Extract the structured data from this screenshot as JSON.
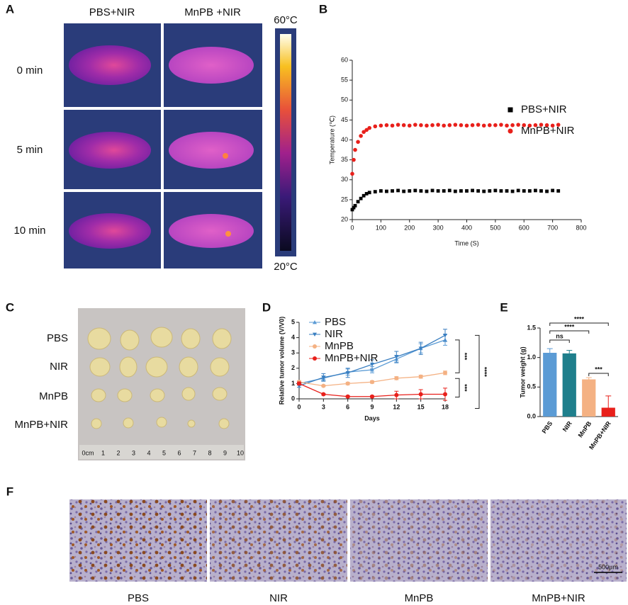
{
  "figure": {
    "panels": [
      "A",
      "B",
      "C",
      "D",
      "E",
      "F"
    ],
    "thermal": {
      "columns": [
        "PBS+NIR",
        "MnPB +NIR"
      ],
      "rows": [
        "0 min",
        "5 min",
        "10 min"
      ],
      "scale_max": "60°C",
      "scale_min": "20°C"
    },
    "photo": {
      "rows": [
        "PBS",
        "NIR",
        "MnPB",
        "MnPB+NIR"
      ],
      "ruler": [
        "0cm",
        "1",
        "2",
        "3",
        "4",
        "5",
        "6",
        "7",
        "8",
        "9",
        "10"
      ]
    },
    "histology": {
      "labels": [
        "PBS",
        "NIR",
        "MnPB",
        "MnPB+NIR"
      ],
      "scale_bar": "500μm"
    }
  },
  "chart_data": [
    {
      "type": "scatter",
      "xlabel": "Time (S)",
      "ylabel": "Temperature (℃)",
      "x": [
        0,
        5,
        10,
        20,
        30,
        40,
        50,
        60,
        80,
        100,
        120,
        140,
        160,
        180,
        200,
        220,
        240,
        260,
        280,
        300,
        320,
        340,
        360,
        380,
        400,
        420,
        440,
        460,
        480,
        500,
        520,
        540,
        560,
        580,
        600,
        620,
        640,
        660,
        680,
        700,
        720
      ],
      "series": [
        {
          "name": "PBS+NIR",
          "color": "#000000",
          "marker": "square",
          "values": [
            22.5,
            23,
            23.5,
            24.5,
            25.3,
            26,
            26.5,
            26.8,
            27,
            27.2,
            27.1,
            27.2,
            27.3,
            27.1,
            27.2,
            27.3,
            27.2,
            27.1,
            27.3,
            27.2,
            27.2,
            27.3,
            27.1,
            27.2,
            27.2,
            27.3,
            27.2,
            27.1,
            27.2,
            27.3,
            27.2,
            27.2,
            27.1,
            27.3,
            27.2,
            27.2,
            27.3,
            27.2,
            27.1,
            27.3,
            27.2
          ]
        },
        {
          "name": "MnPB+NIR",
          "color": "#e8201b",
          "marker": "circle",
          "values": [
            31.5,
            35,
            37.5,
            39.5,
            41,
            42,
            42.5,
            43,
            43.4,
            43.6,
            43.7,
            43.6,
            43.8,
            43.7,
            43.6,
            43.8,
            43.7,
            43.6,
            43.7,
            43.8,
            43.6,
            43.7,
            43.8,
            43.7,
            43.6,
            43.7,
            43.8,
            43.6,
            43.7,
            43.7,
            43.8,
            43.6,
            43.7,
            43.8,
            43.7,
            43.6,
            43.7,
            43.8,
            43.7,
            43.6,
            43.8
          ]
        }
      ],
      "xlim": [
        0,
        800
      ],
      "xticks": [
        0,
        100,
        200,
        300,
        400,
        500,
        600,
        700,
        800
      ],
      "ylim": [
        20,
        60
      ],
      "yticks": [
        20,
        25,
        30,
        35,
        40,
        45,
        50,
        55,
        60
      ],
      "legend": "upper right"
    },
    {
      "type": "line",
      "xlabel": "Days",
      "ylabel": "Relative tumor volume (V/V0)",
      "x": [
        0,
        3,
        6,
        9,
        12,
        15,
        18
      ],
      "series": [
        {
          "name": "PBS",
          "color": "#5b9bd5",
          "marker": "triangle-up",
          "values": [
            1.0,
            1.35,
            1.75,
            1.9,
            2.6,
            3.3,
            3.85
          ],
          "errors": [
            0.1,
            0.15,
            0.2,
            0.2,
            0.25,
            0.3,
            0.35
          ]
        },
        {
          "name": "NIR",
          "color": "#3a7fc1",
          "marker": "triangle-down",
          "values": [
            0.85,
            1.4,
            1.7,
            2.25,
            2.75,
            3.3,
            4.15
          ],
          "errors": [
            0.1,
            0.25,
            0.3,
            0.3,
            0.35,
            0.4,
            0.4
          ]
        },
        {
          "name": "MnPB",
          "color": "#f4b183",
          "marker": "circle",
          "values": [
            1.1,
            0.85,
            1.0,
            1.1,
            1.35,
            1.45,
            1.7
          ],
          "errors": [
            0.1,
            0.05,
            0.08,
            0.08,
            0.1,
            0.1,
            0.12
          ]
        },
        {
          "name": "MnPB+NIR",
          "color": "#e8201b",
          "marker": "circle",
          "values": [
            1.0,
            0.3,
            0.15,
            0.15,
            0.25,
            0.3,
            0.3
          ],
          "errors": [
            0.1,
            0.05,
            0.05,
            0.05,
            0.25,
            0.3,
            0.4
          ]
        }
      ],
      "xlim": [
        0,
        18
      ],
      "xticks": [
        0,
        3,
        6,
        9,
        12,
        15,
        18
      ],
      "ylim": [
        0,
        5
      ],
      "yticks": [
        0,
        1,
        2,
        3,
        4,
        5
      ],
      "annotations": [
        "****",
        "***",
        "***"
      ],
      "legend": "upper left"
    },
    {
      "type": "bar",
      "ylabel": "Tumor weight (g)",
      "categories": [
        "PBS",
        "NIR",
        "MnPB",
        "MnPB+NIR"
      ],
      "values": [
        1.08,
        1.07,
        0.63,
        0.15
      ],
      "errors": [
        0.07,
        0.05,
        0.03,
        0.2
      ],
      "colors": [
        "#5b9bd5",
        "#1f7f8c",
        "#f4b183",
        "#e8201b"
      ],
      "ylim": [
        0,
        1.5
      ],
      "yticks": [
        {
          "value": 0,
          "label": "0.0"
        },
        0.5,
        {
          "value": 1,
          "label": "1.0"
        },
        1.5
      ],
      "annotations": [
        "ns",
        "****",
        "****",
        "***"
      ]
    }
  ]
}
